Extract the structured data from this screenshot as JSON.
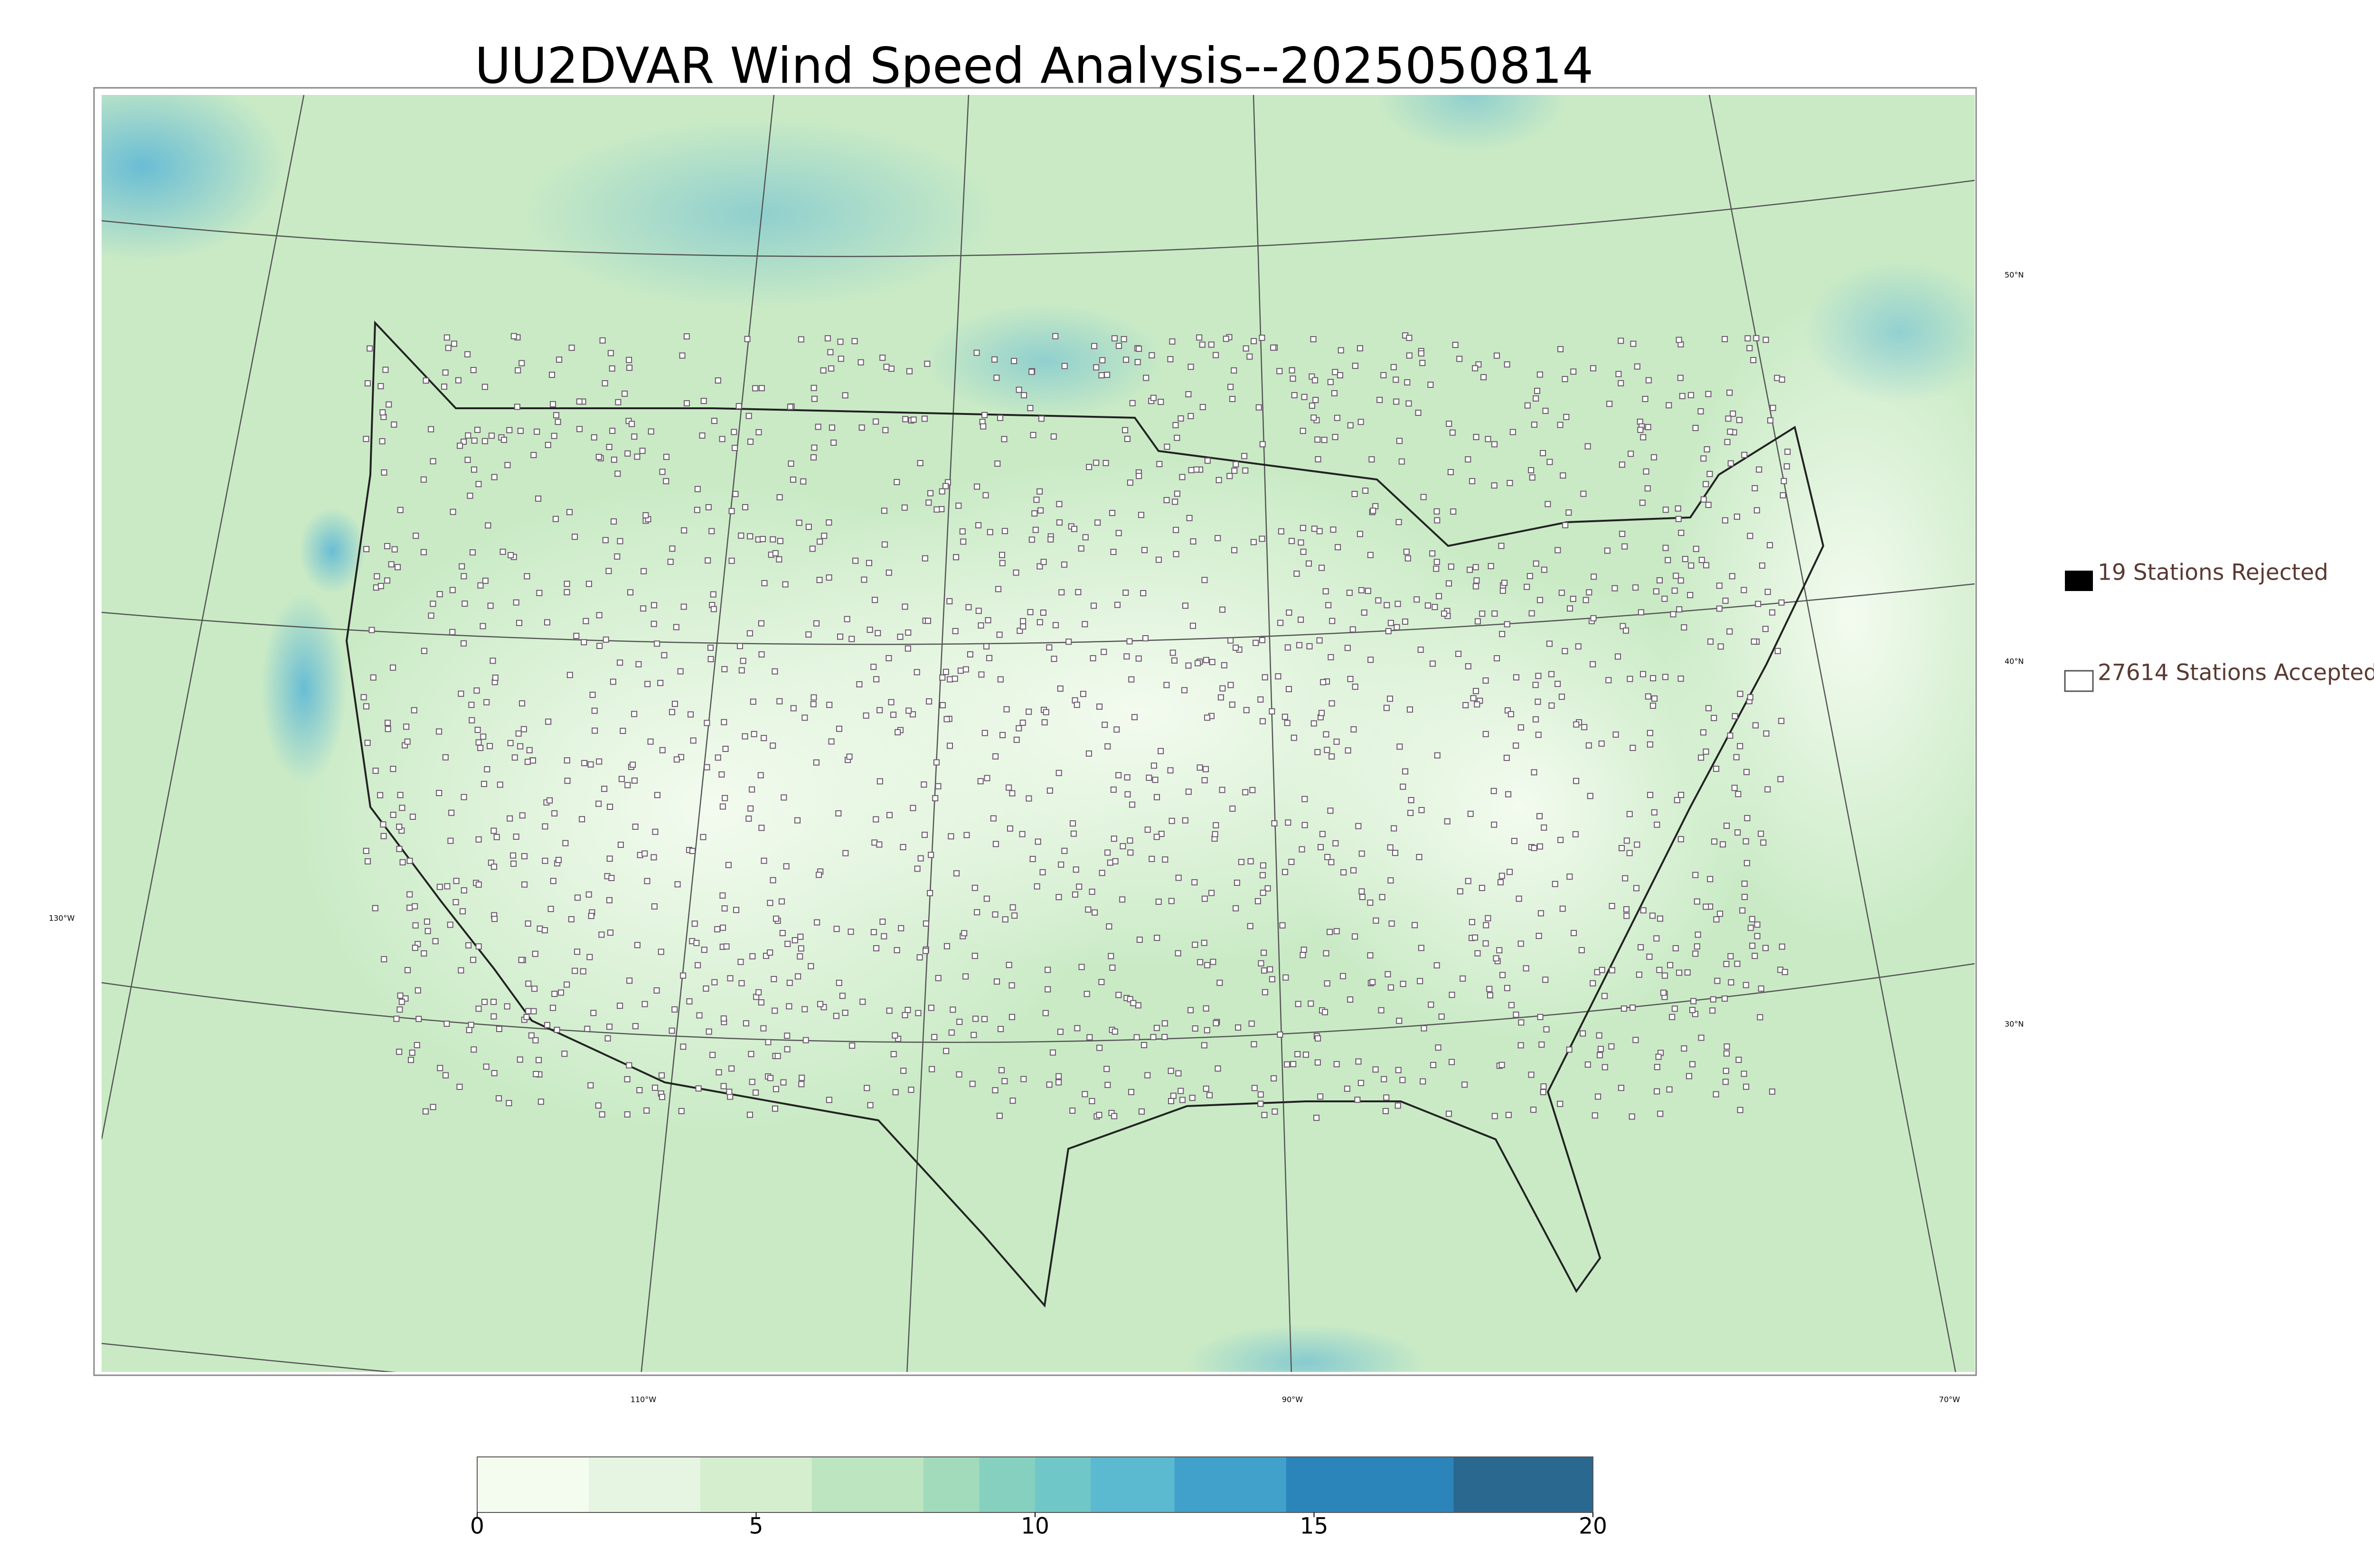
{
  "title": "UU2DVAR Wind Speed Analysis--2025050814",
  "map": {
    "lat_labels": [
      "50°N",
      "40°N",
      "30°N"
    ],
    "lon_labels": [
      "130°W",
      "110°W",
      "90°W",
      "70°W"
    ]
  },
  "legend": [
    "19 Stations Rejected",
    "27614 Stations Accepted"
  ],
  "colorbar": {
    "lim": [
      0,
      20
    ],
    "ticks": [
      0,
      5,
      10,
      15,
      20
    ],
    "bounds": [
      0,
      2,
      4,
      6,
      8,
      9,
      10,
      11,
      12.5,
      14.5,
      17.5,
      20
    ],
    "colors": [
      "#f4fbef",
      "#e6f5e1",
      "#d4eece",
      "#bde5bf",
      "#a2dbbb",
      "#86d0c0",
      "#6fc7c8",
      "#5bb9d0",
      "#41a1cb",
      "#2b85bb",
      "#2a6890"
    ]
  }
}
